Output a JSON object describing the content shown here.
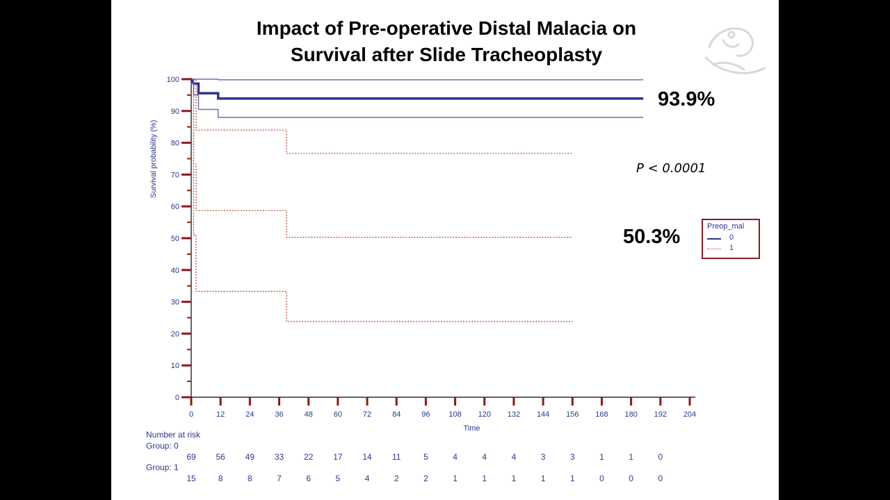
{
  "slide": {
    "title_line1": "Impact of Pre-operative Distal Malacia on",
    "title_line2": "Survival after Slide Tracheoplasty"
  },
  "annotations": {
    "group0_survival": "93.9%",
    "group1_survival": "50.3%",
    "p_value": "P < 0.0001"
  },
  "legend": {
    "title": "Preop_mal",
    "entries": [
      {
        "label": "0",
        "style": "solid"
      },
      {
        "label": "1",
        "style": "dotted"
      }
    ]
  },
  "risk_table": {
    "title": "Number at risk",
    "group0_label": "Group: 0",
    "group1_label": "Group: 1",
    "times": [
      0,
      12,
      24,
      36,
      48,
      60,
      72,
      84,
      96,
      108,
      120,
      132,
      144,
      156,
      168,
      180,
      192
    ],
    "group0": [
      69,
      56,
      49,
      33,
      22,
      17,
      14,
      11,
      5,
      4,
      4,
      4,
      3,
      3,
      1,
      1,
      0
    ],
    "group1": [
      15,
      8,
      8,
      7,
      6,
      5,
      4,
      2,
      2,
      1,
      1,
      1,
      1,
      1,
      0,
      0,
      0
    ]
  },
  "colors": {
    "group0": "#2B3590",
    "group0_ci": "#6A70B0",
    "group1": "#C0392B",
    "axis": "#8B1A1A",
    "tick_label": "#2B3590"
  },
  "chart_data": {
    "type": "line",
    "title": "Impact of Pre-operative Distal Malacia on Survival after Slide Tracheoplasty",
    "xlabel": "Time",
    "ylabel": "Survival probability (%)",
    "xlim": [
      0,
      204
    ],
    "ylim": [
      0,
      100
    ],
    "xticks": [
      0,
      12,
      24,
      36,
      48,
      60,
      72,
      84,
      96,
      108,
      120,
      132,
      144,
      156,
      168,
      180,
      192,
      204
    ],
    "yticks": [
      0,
      10,
      20,
      30,
      40,
      50,
      60,
      70,
      80,
      90,
      100
    ],
    "legend_title": "Preop_mal",
    "series": [
      {
        "name": "0",
        "role": "estimate",
        "style": "solid-thick",
        "x": [
          0,
          1,
          3,
          3,
          11,
          11,
          185
        ],
        "y": [
          100,
          98.6,
          98.6,
          95.6,
          95.6,
          93.9,
          93.9
        ]
      },
      {
        "name": "0",
        "role": "upper CI",
        "style": "solid-thin",
        "x": [
          0,
          11,
          11,
          185
        ],
        "y": [
          100,
          100,
          99.8,
          99.8
        ]
      },
      {
        "name": "0",
        "role": "lower CI",
        "style": "solid-thin",
        "x": [
          0,
          1,
          1,
          3,
          3,
          11,
          11,
          185
        ],
        "y": [
          100,
          100,
          95,
          95,
          90.5,
          90.5,
          88,
          88
        ]
      },
      {
        "name": "1",
        "role": "estimate",
        "style": "dotted",
        "x": [
          0,
          1,
          1,
          2,
          2,
          39,
          39,
          156
        ],
        "y": [
          100,
          100,
          73.3,
          73.3,
          58.7,
          58.7,
          50.3,
          50.3
        ]
      },
      {
        "name": "1",
        "role": "upper CI",
        "style": "dotted",
        "x": [
          0,
          2,
          2,
          39,
          39,
          156
        ],
        "y": [
          100,
          100,
          84,
          84,
          76.7,
          76.7
        ]
      },
      {
        "name": "1",
        "role": "lower CI",
        "style": "dotted",
        "x": [
          0,
          1,
          1,
          2,
          2,
          39,
          39,
          156
        ],
        "y": [
          100,
          100,
          51,
          51,
          33.3,
          33.3,
          23.8,
          23.8
        ]
      }
    ]
  }
}
